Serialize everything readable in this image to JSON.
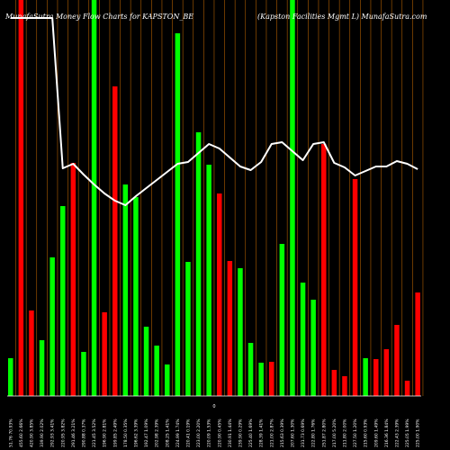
{
  "chart_data": {
    "type": "bar",
    "title_left": "MunafaSutra  Money Flow  Charts for KAPSTON_BE",
    "title_right": "(Kapston Facilities Mgmt L) MunafaSutra.com",
    "axis_mid_label": "0",
    "colors": {
      "up": "#00ff00",
      "down": "#ff0000",
      "line": "#ffffff",
      "grid": "#b05f00",
      "background": "#000000"
    },
    "ylim": [
      0,
      440
    ],
    "series": [
      {
        "values": [
          42,
          440,
          95,
          62,
          154,
          211,
          259,
          49,
          440,
          93,
          344,
          235,
          221,
          77,
          56,
          35,
          403,
          149,
          293,
          257,
          225,
          150,
          142,
          59,
          37,
          38,
          169,
          440,
          126,
          107,
          280,
          29,
          22,
          241,
          42,
          41,
          52,
          79,
          17,
          115
        ],
        "colors": [
          "up",
          "down",
          "down",
          "up",
          "up",
          "up",
          "down",
          "up",
          "up",
          "down",
          "down",
          "up",
          "up",
          "up",
          "up",
          "up",
          "up",
          "up",
          "up",
          "up",
          "down",
          "down",
          "up",
          "up",
          "up",
          "down",
          "up",
          "up",
          "up",
          "up",
          "down",
          "down",
          "down",
          "down",
          "up",
          "down",
          "down",
          "down",
          "down",
          "down"
        ]
      },
      {
        "values": [
          420,
          420,
          420,
          420,
          420,
          253,
          258,
          246,
          235,
          225,
          217,
          212,
          222,
          231,
          240,
          249,
          258,
          260,
          270,
          280,
          275,
          265,
          255,
          251,
          260,
          280,
          282,
          272,
          262,
          280,
          282,
          259,
          254,
          245,
          250,
          255,
          255,
          261,
          258,
          252
        ]
      }
    ],
    "tick_labels": [
      "51.76 70.93%",
      "455.60 2.66%",
      "420.90 3.85%",
      "339.90 2.02%",
      "292.93 3.41%",
      "220.95 3.82%",
      "291.46 3.21%",
      "290.88 0.37%",
      "221.45 3.52%",
      "196.90 2.81%",
      "199.85 2.49%",
      "178.50 0.35%",
      "196.62 3.39%",
      "192.47 1.09%",
      "202.98 2.39%",
      "208.25 1.41%",
      "224.99 1.74%",
      "220.41 0.19%",
      "223.00 2.20%",
      "220.09 1.53%",
      "220.90 0.45%",
      "230.91 1.44%",
      "239.90 0.29%",
      "225.40 1.69%",
      "228.39 1.41%",
      "221.00 2.87%",
      "215.63 0.39%",
      "207.60 1.30%",
      "231.73 0.69%",
      "222.80 1.76%",
      "251.87 2.80%",
      "217.00 5.20%",
      "211.80 2.00%",
      "227.50 1.20%",
      "215.60 0.93%",
      "209.60 1.49%",
      "216.36 1.84%",
      "222.43 2.39%",
      "225.05 1.99%",
      "225.00 1.90%"
    ]
  }
}
